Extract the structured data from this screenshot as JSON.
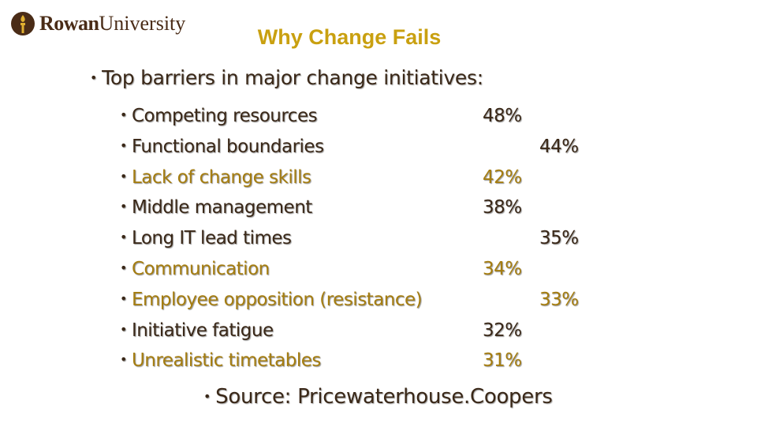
{
  "logo": {
    "name": "Rowan",
    "suffix": "University"
  },
  "title": "Why Change Fails",
  "intro": "Top barriers in major change initiatives:",
  "items": [
    {
      "label": "Competing resources",
      "value": "48%",
      "highlight": false
    },
    {
      "label": "Functional boundaries",
      "value": "44%",
      "highlight": false
    },
    {
      "label": "Lack of change skills",
      "value": "42%",
      "highlight": true
    },
    {
      "label": "Middle management",
      "value": "38%",
      "highlight": false
    },
    {
      "label": "Long IT lead times",
      "value": "35%",
      "highlight": false
    },
    {
      "label": "Communication",
      "value": "34%",
      "highlight": true
    },
    {
      "label": "Employee opposition (resistance)",
      "value": "33%",
      "highlight": true
    },
    {
      "label": "Initiative fatigue",
      "value": "32%",
      "highlight": false
    },
    {
      "label": "Unrealistic timetables",
      "value": "31%",
      "highlight": true
    }
  ],
  "source": "Source: Pricewaterhouse.Coopers"
}
